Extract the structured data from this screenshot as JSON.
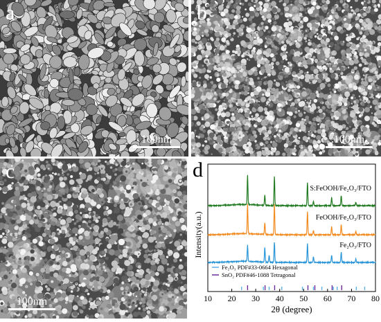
{
  "panels": [
    {
      "id": "a",
      "label": "a",
      "scale": "100nm",
      "texture": "grain"
    },
    {
      "id": "b",
      "label": "b",
      "scale": "100nm",
      "texture": "porous"
    },
    {
      "id": "c",
      "label": "c",
      "scale": "100nm",
      "texture": "cluster"
    }
  ],
  "chart_data": {
    "type": "line",
    "panel_label": "d",
    "xlabel": "2θ (degree)",
    "ylabel": "Intensity(a.u.)",
    "xlim": [
      10,
      80
    ],
    "xticks": [
      "10",
      "20",
      "30",
      "40",
      "50",
      "60",
      "70",
      "80"
    ],
    "series": [
      {
        "name": "S:FeOOH/Fe₂O₃/FTO",
        "color": "#1f7a1f",
        "peaks": [
          [
            26.6,
            1.0
          ],
          [
            33.8,
            0.35
          ],
          [
            37.8,
            1.0
          ],
          [
            51.6,
            0.8
          ],
          [
            54.1,
            0.15
          ],
          [
            61.7,
            0.28
          ],
          [
            65.7,
            0.35
          ],
          [
            71.8,
            0.12
          ]
        ]
      },
      {
        "name": "FeOOH/Fe₂O₃/FTO",
        "color": "#f28a1e",
        "peaks": [
          [
            26.6,
            1.0
          ],
          [
            33.8,
            0.4
          ],
          [
            37.8,
            1.05
          ],
          [
            51.6,
            0.8
          ],
          [
            54.1,
            0.15
          ],
          [
            61.7,
            0.28
          ],
          [
            65.7,
            0.35
          ],
          [
            71.8,
            0.12
          ]
        ]
      },
      {
        "name": "Fe₂O₃/FTO",
        "color": "#2a95d8",
        "peaks": [
          [
            26.6,
            0.55
          ],
          [
            33.8,
            0.5
          ],
          [
            35.6,
            0.25
          ],
          [
            37.8,
            0.7
          ],
          [
            51.6,
            0.65
          ],
          [
            54.1,
            0.2
          ],
          [
            61.7,
            0.25
          ],
          [
            65.7,
            0.35
          ],
          [
            71.8,
            0.12
          ]
        ]
      }
    ],
    "references": [
      {
        "name": "Fe₂O₃ PDF#33-0664 Hexagonal",
        "color": "#5ab0e8",
        "lines": [
          24.1,
          33.2,
          35.6,
          40.9,
          49.5,
          54.1,
          57.6,
          62.4,
          64.0,
          72.0,
          75.5
        ]
      },
      {
        "name": "SnO₂ PDF#46-1088 Tetragonal",
        "color": "#6a2c9c",
        "lines": [
          26.6,
          33.9,
          37.9,
          51.8,
          54.7,
          61.9,
          65.9
        ]
      }
    ]
  }
}
